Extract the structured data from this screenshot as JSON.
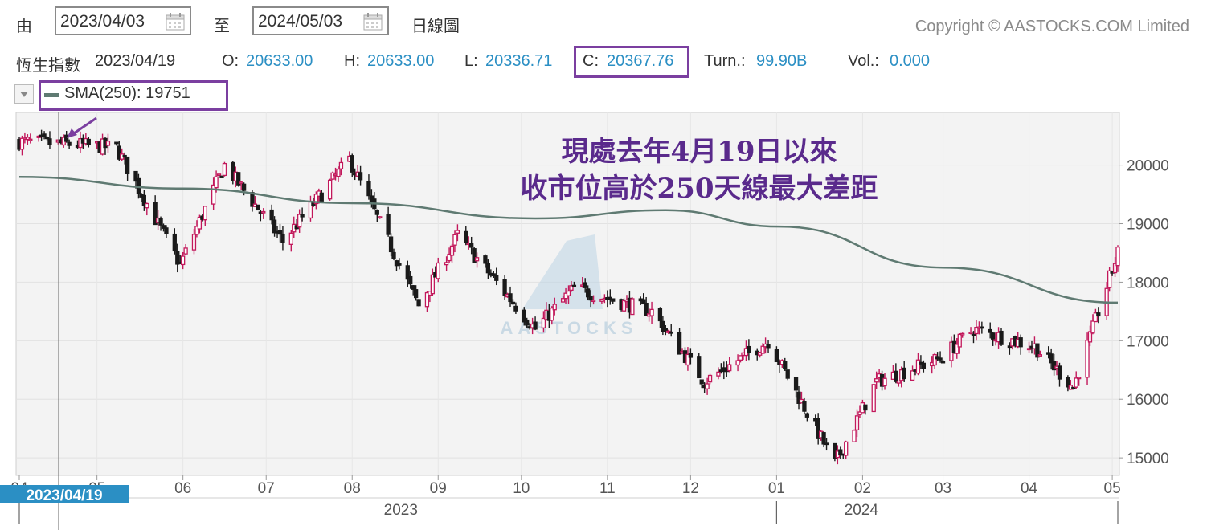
{
  "toolbar": {
    "from_label": "由",
    "from_date": "2023/04/03",
    "to_label": "至",
    "to_date": "2024/05/03",
    "interval": "日線圖",
    "copyright": "Copyright © AASTOCKS.COM Limited"
  },
  "quote": {
    "name": "恆生指數",
    "date": "2023/04/19",
    "open_label": "O:",
    "open": "20633.00",
    "high_label": "H:",
    "high": "20633.00",
    "low_label": "L:",
    "low": "20336.71",
    "close_label": "C:",
    "close": "20367.76",
    "turnover_label": "Turn.:",
    "turnover": "99.90B",
    "volume_label": "Vol.:",
    "volume": "0.000"
  },
  "legend": {
    "sma_label": "SMA(250): 19751"
  },
  "annotation": {
    "line1": "現處去年4月19日以來",
    "line2": "收市位高於250天線最大差距"
  },
  "watermark": "AASTOCKS",
  "colors": {
    "up": "#c2185b",
    "down": "#1a1a1a",
    "sma": "#5f7a72",
    "accent": "#2b8fc4",
    "highlight": "#7b3fa0",
    "annotation": "#5a2a8c"
  },
  "chart_data": {
    "type": "candlestick",
    "ylim": [
      14700,
      20900
    ],
    "y_ticks": [
      "15000",
      "16000",
      "17000",
      "18000",
      "19000",
      "20000"
    ],
    "month_ticks": [
      "04",
      "05",
      "06",
      "07",
      "08",
      "09",
      "10",
      "11",
      "12",
      "01",
      "02",
      "03",
      "04",
      "05"
    ],
    "year_labels": [
      "2023",
      "2024"
    ],
    "crosshair_label": "2023/04/19",
    "series": [
      {
        "name": "close",
        "x": [
          "2023/04/03",
          "2023/04/19",
          "2023/05/08",
          "2023/05/31",
          "2023/06/16",
          "2023/07/07",
          "2023/07/31",
          "2023/08/25",
          "2023/09/08",
          "2023/10/06",
          "2023/10/20",
          "2023/11/17",
          "2023/12/06",
          "2023/12/29",
          "2024/01/22",
          "2024/02/06",
          "2024/02/29",
          "2024/03/12",
          "2024/04/03",
          "2024/04/17",
          "2024/05/03"
        ],
        "values": [
          20400,
          20367.76,
          20300,
          18300,
          20000,
          18700,
          20100,
          17600,
          18800,
          17200,
          17900,
          17500,
          16300,
          17000,
          14900,
          16300,
          16700,
          17200,
          16900,
          16200,
          18500
        ]
      },
      {
        "name": "SMA(250)",
        "x": [
          "2023/04/03",
          "2023/06/01",
          "2023/08/01",
          "2023/10/06",
          "2023/11/22",
          "2024/01/02",
          "2024/03/01",
          "2024/05/03"
        ],
        "values": [
          19800,
          19600,
          19350,
          19090,
          19230,
          18950,
          18250,
          17650
        ]
      }
    ]
  }
}
